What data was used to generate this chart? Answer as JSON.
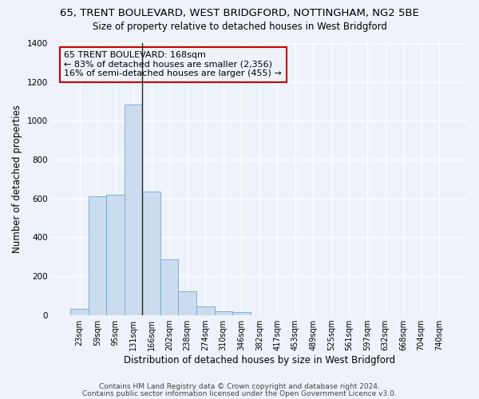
{
  "title": "65, TRENT BOULEVARD, WEST BRIDGFORD, NOTTINGHAM, NG2 5BE",
  "subtitle": "Size of property relative to detached houses in West Bridgford",
  "xlabel": "Distribution of detached houses by size in West Bridgford",
  "ylabel": "Number of detached properties",
  "bin_labels": [
    "23sqm",
    "59sqm",
    "95sqm",
    "131sqm",
    "166sqm",
    "202sqm",
    "238sqm",
    "274sqm",
    "310sqm",
    "346sqm",
    "382sqm",
    "417sqm",
    "453sqm",
    "489sqm",
    "525sqm",
    "561sqm",
    "597sqm",
    "632sqm",
    "668sqm",
    "704sqm",
    "740sqm"
  ],
  "bar_heights": [
    30,
    610,
    620,
    1085,
    635,
    285,
    120,
    45,
    20,
    15,
    0,
    0,
    0,
    0,
    0,
    0,
    0,
    0,
    0,
    0,
    0
  ],
  "bar_color": "#ccdcef",
  "bar_edge_color": "#6aaad4",
  "vline_x": 4.0,
  "annotation_line1": "65 TRENT BOULEVARD: 168sqm",
  "annotation_line2": "← 83% of detached houses are smaller (2,356)",
  "annotation_line3": "16% of semi-detached houses are larger (455) →",
  "annotation_box_color": "#cc0000",
  "ylim": [
    0,
    1400
  ],
  "yticks": [
    0,
    200,
    400,
    600,
    800,
    1000,
    1200,
    1400
  ],
  "footer1": "Contains HM Land Registry data © Crown copyright and database right 2024.",
  "footer2": "Contains public sector information licensed under the Open Government Licence v3.0.",
  "bg_color": "#eef2fa",
  "grid_color": "#ffffff",
  "title_fontsize": 9.5,
  "subtitle_fontsize": 8.5,
  "axis_label_fontsize": 8.5,
  "tick_fontsize": 7,
  "footer_fontsize": 6.5,
  "annot_fontsize": 8
}
